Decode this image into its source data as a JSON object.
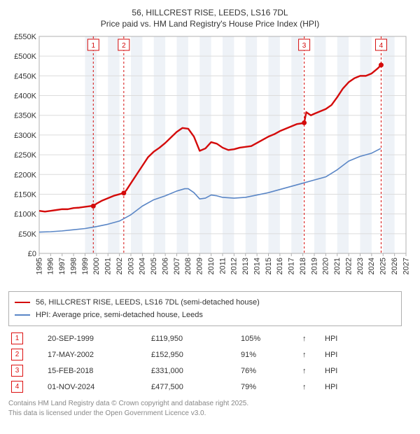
{
  "title_line1": "56, HILLCREST RISE, LEEDS, LS16 7DL",
  "title_line2": "Price paid vs. HM Land Registry's House Price Index (HPI)",
  "chart": {
    "type": "line",
    "background_color": "#ffffff",
    "plot_border_color": "#b0b0b0",
    "gridline_color": "#dcdcdc",
    "x": {
      "min": 1995,
      "max": 2027,
      "tick_step": 1
    },
    "y": {
      "min": 0,
      "max": 550,
      "tick_step": 50,
      "tick_prefix": "£",
      "tick_suffix": "K"
    },
    "alt_band_color": "#eef2f7",
    "alt_band_years": [
      1999,
      2001,
      2003,
      2005,
      2007,
      2009,
      2011,
      2013,
      2015,
      2017,
      2019,
      2021,
      2023,
      2025
    ],
    "series": [
      {
        "name": "56, HILLCREST RISE, LEEDS, LS16 7DL (semi-detached house)",
        "color": "#d40b0b",
        "width": 2.4,
        "points": [
          [
            1995.0,
            108
          ],
          [
            1995.5,
            106
          ],
          [
            1996.0,
            108
          ],
          [
            1996.5,
            110
          ],
          [
            1997.0,
            112
          ],
          [
            1997.5,
            112
          ],
          [
            1998.0,
            115
          ],
          [
            1998.5,
            116
          ],
          [
            1999.0,
            118
          ],
          [
            1999.5,
            120
          ],
          [
            1999.72,
            120
          ],
          [
            2000.0,
            126
          ],
          [
            2000.5,
            134
          ],
          [
            2001.0,
            140
          ],
          [
            2001.5,
            146
          ],
          [
            2002.0,
            150
          ],
          [
            2002.38,
            153
          ],
          [
            2002.6,
            160
          ],
          [
            2003.0,
            178
          ],
          [
            2003.5,
            200
          ],
          [
            2004.0,
            222
          ],
          [
            2004.5,
            244
          ],
          [
            2005.0,
            258
          ],
          [
            2005.5,
            268
          ],
          [
            2006.0,
            280
          ],
          [
            2006.5,
            294
          ],
          [
            2007.0,
            308
          ],
          [
            2007.5,
            318
          ],
          [
            2008.0,
            316
          ],
          [
            2008.5,
            296
          ],
          [
            2009.0,
            260
          ],
          [
            2009.5,
            266
          ],
          [
            2010.0,
            282
          ],
          [
            2010.5,
            278
          ],
          [
            2011.0,
            268
          ],
          [
            2011.5,
            262
          ],
          [
            2012.0,
            264
          ],
          [
            2012.5,
            268
          ],
          [
            2013.0,
            270
          ],
          [
            2013.5,
            272
          ],
          [
            2014.0,
            280
          ],
          [
            2014.5,
            288
          ],
          [
            2015.0,
            296
          ],
          [
            2015.5,
            302
          ],
          [
            2016.0,
            310
          ],
          [
            2016.5,
            316
          ],
          [
            2017.0,
            322
          ],
          [
            2017.5,
            328
          ],
          [
            2018.0,
            330
          ],
          [
            2018.12,
            331
          ],
          [
            2018.3,
            358
          ],
          [
            2018.7,
            350
          ],
          [
            2019.0,
            354
          ],
          [
            2019.5,
            360
          ],
          [
            2020.0,
            366
          ],
          [
            2020.5,
            376
          ],
          [
            2021.0,
            396
          ],
          [
            2021.5,
            418
          ],
          [
            2022.0,
            434
          ],
          [
            2022.5,
            444
          ],
          [
            2023.0,
            450
          ],
          [
            2023.5,
            450
          ],
          [
            2024.0,
            456
          ],
          [
            2024.5,
            468
          ],
          [
            2024.83,
            477.5
          ]
        ]
      },
      {
        "name": "HPI: Average price, semi-detached house, Leeds",
        "color": "#5a86c6",
        "width": 1.6,
        "points": [
          [
            1995.0,
            54
          ],
          [
            1996.0,
            55
          ],
          [
            1997.0,
            57
          ],
          [
            1998.0,
            60
          ],
          [
            1999.0,
            63
          ],
          [
            2000.0,
            68
          ],
          [
            2001.0,
            74
          ],
          [
            2002.0,
            82
          ],
          [
            2003.0,
            98
          ],
          [
            2004.0,
            120
          ],
          [
            2005.0,
            136
          ],
          [
            2006.0,
            146
          ],
          [
            2007.0,
            158
          ],
          [
            2007.7,
            164
          ],
          [
            2008.0,
            164
          ],
          [
            2008.5,
            154
          ],
          [
            2009.0,
            138
          ],
          [
            2009.5,
            140
          ],
          [
            2010.0,
            148
          ],
          [
            2010.5,
            146
          ],
          [
            2011.0,
            142
          ],
          [
            2012.0,
            140
          ],
          [
            2013.0,
            142
          ],
          [
            2014.0,
            148
          ],
          [
            2015.0,
            154
          ],
          [
            2016.0,
            162
          ],
          [
            2017.0,
            170
          ],
          [
            2018.0,
            178
          ],
          [
            2019.0,
            186
          ],
          [
            2020.0,
            194
          ],
          [
            2021.0,
            212
          ],
          [
            2022.0,
            234
          ],
          [
            2023.0,
            246
          ],
          [
            2024.0,
            254
          ],
          [
            2024.8,
            266
          ]
        ]
      }
    ],
    "markers": [
      {
        "label": "1",
        "x": 1999.72,
        "y": 119.95,
        "color": "#d40b0b"
      },
      {
        "label": "2",
        "x": 2002.38,
        "y": 152.95,
        "color": "#d40b0b"
      },
      {
        "label": "3",
        "x": 2018.12,
        "y": 331.0,
        "color": "#d40b0b"
      },
      {
        "label": "4",
        "x": 2024.83,
        "y": 477.5,
        "color": "#d40b0b"
      }
    ],
    "marker_line_color": "#d40b0b",
    "marker_dash": "3,3"
  },
  "legend": {
    "series1": {
      "label": "56, HILLCREST RISE, LEEDS, LS16 7DL (semi-detached house)",
      "color": "#d40b0b"
    },
    "series2": {
      "label": "HPI: Average price, semi-detached house, Leeds",
      "color": "#5a86c6"
    }
  },
  "transactions": [
    {
      "n": "1",
      "date": "20-SEP-1999",
      "price": "£119,950",
      "pct": "105%",
      "arrow": "↑",
      "tag": "HPI"
    },
    {
      "n": "2",
      "date": "17-MAY-2002",
      "price": "£152,950",
      "pct": "91%",
      "arrow": "↑",
      "tag": "HPI"
    },
    {
      "n": "3",
      "date": "15-FEB-2018",
      "price": "£331,000",
      "pct": "76%",
      "arrow": "↑",
      "tag": "HPI"
    },
    {
      "n": "4",
      "date": "01-NOV-2024",
      "price": "£477,500",
      "pct": "79%",
      "arrow": "↑",
      "tag": "HPI"
    }
  ],
  "footer_line1": "Contains HM Land Registry data © Crown copyright and database right 2025.",
  "footer_line2": "This data is licensed under the Open Government Licence v3.0."
}
